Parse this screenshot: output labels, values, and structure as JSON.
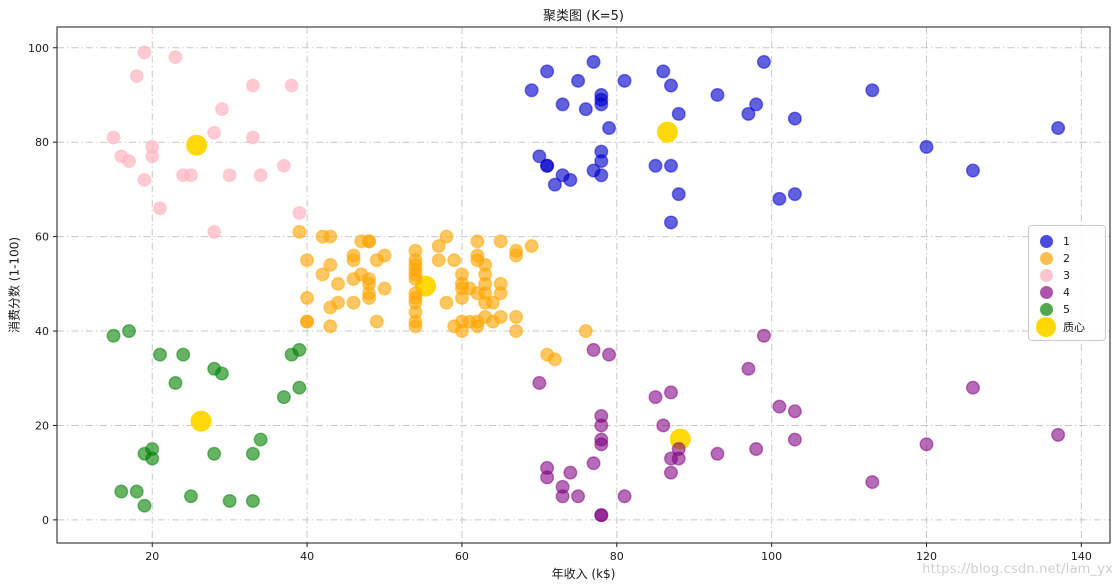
{
  "figure": {
    "background": "#ffffff"
  },
  "chart_data": {
    "type": "scatter",
    "title": "聚类图 (K=5)",
    "xlabel": "年收入 (k$)",
    "ylabel": "消费分数 (1-100)",
    "xlim": [
      7.7,
      143.7
    ],
    "ylim": [
      -4.9,
      104.4
    ],
    "xticks": [
      20,
      40,
      60,
      80,
      100,
      120,
      140
    ],
    "yticks": [
      0,
      20,
      40,
      60,
      80,
      100
    ],
    "grid": true,
    "grid_style": "dashdot",
    "legend_position": "center-right",
    "watermark": "https://blog.csdn.net/lam_yx",
    "series": [
      {
        "name": "1",
        "color": "#0000CD",
        "fill_opacity": 0.62,
        "stroke_opacity": 0.5,
        "marker_radius": 6.3,
        "points": [
          [
            69,
            91
          ],
          [
            70,
            77
          ],
          [
            71,
            95
          ],
          [
            71,
            75
          ],
          [
            71,
            75
          ],
          [
            72,
            71
          ],
          [
            73,
            88
          ],
          [
            73,
            73
          ],
          [
            74,
            72
          ],
          [
            75,
            93
          ],
          [
            76,
            87
          ],
          [
            77,
            97
          ],
          [
            77,
            74
          ],
          [
            78,
            90
          ],
          [
            78,
            88
          ],
          [
            78,
            76
          ],
          [
            78,
            89
          ],
          [
            78,
            78
          ],
          [
            78,
            73
          ],
          [
            79,
            83
          ],
          [
            81,
            93
          ],
          [
            85,
            75
          ],
          [
            86,
            95
          ],
          [
            87,
            63
          ],
          [
            87,
            75
          ],
          [
            87,
            92
          ],
          [
            88,
            86
          ],
          [
            88,
            69
          ],
          [
            93,
            90
          ],
          [
            97,
            86
          ],
          [
            98,
            88
          ],
          [
            99,
            97
          ],
          [
            101,
            68
          ],
          [
            103,
            85
          ],
          [
            103,
            69
          ],
          [
            113,
            91
          ],
          [
            120,
            79
          ],
          [
            126,
            74
          ],
          [
            137,
            83
          ]
        ]
      },
      {
        "name": "2",
        "color": "#FFA500",
        "fill_opacity": 0.62,
        "stroke_opacity": 0.5,
        "marker_radius": 6.3,
        "points": [
          [
            39,
            61
          ],
          [
            40,
            55
          ],
          [
            40,
            47
          ],
          [
            40,
            42
          ],
          [
            40,
            42
          ],
          [
            42,
            52
          ],
          [
            42,
            60
          ],
          [
            43,
            54
          ],
          [
            43,
            60
          ],
          [
            43,
            45
          ],
          [
            43,
            41
          ],
          [
            44,
            50
          ],
          [
            44,
            46
          ],
          [
            46,
            51
          ],
          [
            46,
            46
          ],
          [
            46,
            56
          ],
          [
            46,
            55
          ],
          [
            47,
            52
          ],
          [
            47,
            59
          ],
          [
            48,
            51
          ],
          [
            48,
            59
          ],
          [
            48,
            50
          ],
          [
            48,
            48
          ],
          [
            48,
            59
          ],
          [
            48,
            47
          ],
          [
            49,
            55
          ],
          [
            49,
            42
          ],
          [
            50,
            49
          ],
          [
            50,
            56
          ],
          [
            54,
            47
          ],
          [
            54,
            54
          ],
          [
            54,
            53
          ],
          [
            54,
            48
          ],
          [
            54,
            52
          ],
          [
            54,
            42
          ],
          [
            54,
            51
          ],
          [
            54,
            55
          ],
          [
            54,
            41
          ],
          [
            54,
            44
          ],
          [
            54,
            57
          ],
          [
            54,
            46
          ],
          [
            57,
            58
          ],
          [
            57,
            55
          ],
          [
            58,
            60
          ],
          [
            58,
            46
          ],
          [
            59,
            55
          ],
          [
            59,
            41
          ],
          [
            60,
            49
          ],
          [
            60,
            40
          ],
          [
            60,
            42
          ],
          [
            60,
            52
          ],
          [
            60,
            47
          ],
          [
            60,
            50
          ],
          [
            61,
            42
          ],
          [
            61,
            49
          ],
          [
            62,
            41
          ],
          [
            62,
            48
          ],
          [
            62,
            59
          ],
          [
            62,
            55
          ],
          [
            62,
            56
          ],
          [
            62,
            42
          ],
          [
            63,
            50
          ],
          [
            63,
            46
          ],
          [
            63,
            43
          ],
          [
            63,
            48
          ],
          [
            63,
            52
          ],
          [
            63,
            54
          ],
          [
            64,
            42
          ],
          [
            64,
            46
          ],
          [
            65,
            48
          ],
          [
            65,
            50
          ],
          [
            65,
            43
          ],
          [
            65,
            59
          ],
          [
            67,
            43
          ],
          [
            67,
            57
          ],
          [
            67,
            56
          ],
          [
            67,
            40
          ],
          [
            69,
            58
          ],
          [
            71,
            35
          ],
          [
            72,
            34
          ],
          [
            76,
            40
          ]
        ]
      },
      {
        "name": "3",
        "color": "#FFB6C1",
        "fill_opacity": 0.72,
        "stroke_opacity": 0.5,
        "marker_radius": 6.3,
        "points": [
          [
            15,
            81
          ],
          [
            16,
            77
          ],
          [
            17,
            76
          ],
          [
            18,
            94
          ],
          [
            19,
            72
          ],
          [
            19,
            99
          ],
          [
            20,
            77
          ],
          [
            20,
            79
          ],
          [
            21,
            66
          ],
          [
            23,
            98
          ],
          [
            24,
            73
          ],
          [
            25,
            73
          ],
          [
            28,
            82
          ],
          [
            28,
            61
          ],
          [
            29,
            87
          ],
          [
            30,
            73
          ],
          [
            33,
            92
          ],
          [
            33,
            81
          ],
          [
            34,
            73
          ],
          [
            37,
            75
          ],
          [
            38,
            92
          ],
          [
            39,
            65
          ]
        ]
      },
      {
        "name": "4",
        "color": "#800080",
        "fill_opacity": 0.58,
        "stroke_opacity": 0.5,
        "marker_radius": 6.3,
        "points": [
          [
            70,
            29
          ],
          [
            71,
            11
          ],
          [
            71,
            9
          ],
          [
            73,
            5
          ],
          [
            73,
            7
          ],
          [
            74,
            10
          ],
          [
            75,
            5
          ],
          [
            77,
            12
          ],
          [
            77,
            36
          ],
          [
            78,
            22
          ],
          [
            78,
            17
          ],
          [
            78,
            20
          ],
          [
            78,
            16
          ],
          [
            78,
            1
          ],
          [
            78,
            1
          ],
          [
            79,
            35
          ],
          [
            81,
            5
          ],
          [
            85,
            26
          ],
          [
            86,
            20
          ],
          [
            87,
            27
          ],
          [
            87,
            13
          ],
          [
            87,
            10
          ],
          [
            88,
            13
          ],
          [
            88,
            15
          ],
          [
            93,
            14
          ],
          [
            97,
            32
          ],
          [
            98,
            15
          ],
          [
            99,
            39
          ],
          [
            101,
            24
          ],
          [
            103,
            17
          ],
          [
            103,
            23
          ],
          [
            113,
            8
          ],
          [
            120,
            16
          ],
          [
            126,
            28
          ],
          [
            137,
            18
          ]
        ]
      },
      {
        "name": "5",
        "color": "#008000",
        "fill_opacity": 0.6,
        "stroke_opacity": 0.5,
        "marker_radius": 6.3,
        "points": [
          [
            15,
            39
          ],
          [
            16,
            6
          ],
          [
            17,
            40
          ],
          [
            18,
            6
          ],
          [
            19,
            3
          ],
          [
            19,
            14
          ],
          [
            20,
            15
          ],
          [
            20,
            13
          ],
          [
            21,
            35
          ],
          [
            23,
            29
          ],
          [
            24,
            35
          ],
          [
            25,
            5
          ],
          [
            28,
            14
          ],
          [
            28,
            32
          ],
          [
            29,
            31
          ],
          [
            30,
            4
          ],
          [
            33,
            4
          ],
          [
            33,
            14
          ],
          [
            34,
            17
          ],
          [
            37,
            26
          ],
          [
            38,
            35
          ],
          [
            39,
            36
          ],
          [
            39,
            28
          ]
        ]
      },
      {
        "name": "质心",
        "color": "#FFD700",
        "fill_opacity": 0.97,
        "stroke_opacity": 0,
        "marker_radius": 10.5,
        "is_centroid": true,
        "points": [
          [
            25.73,
            79.36
          ],
          [
            55.3,
            49.52
          ],
          [
            86.54,
            82.13
          ],
          [
            88.2,
            17.11
          ],
          [
            26.3,
            20.91
          ]
        ]
      }
    ]
  }
}
